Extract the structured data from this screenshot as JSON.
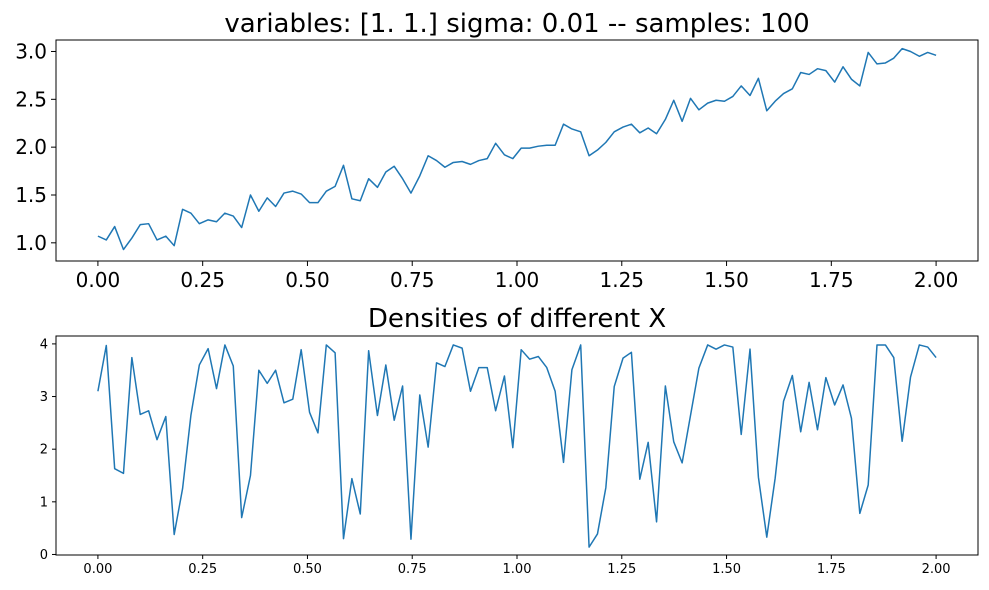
{
  "figure": {
    "background": "#ffffff",
    "line_color": "#1f77b4"
  },
  "chart_data": [
    {
      "type": "line",
      "title": "variables: [1. 1.] sigma: 0.01 -- samples: 100",
      "xlabel": "",
      "ylabel": "",
      "xlim": [
        -0.1,
        2.1
      ],
      "ylim": [
        0.81,
        3.12
      ],
      "xticks": [
        0.0,
        0.25,
        0.5,
        0.75,
        1.0,
        1.25,
        1.5,
        1.75,
        2.0
      ],
      "xtick_labels": [
        "0.00",
        "0.25",
        "0.50",
        "0.75",
        "1.00",
        "1.25",
        "1.50",
        "1.75",
        "2.00"
      ],
      "yticks": [
        1.0,
        1.5,
        2.0,
        2.5,
        3.0
      ],
      "ytick_labels": [
        "1.0",
        "1.5",
        "2.0",
        "2.5",
        "3.0"
      ],
      "grid": false,
      "series": [
        {
          "color": "#1f77b4",
          "x": [
            0.0,
            0.02,
            0.04,
            0.061,
            0.081,
            0.101,
            0.121,
            0.141,
            0.162,
            0.182,
            0.202,
            0.222,
            0.242,
            0.263,
            0.283,
            0.303,
            0.323,
            0.343,
            0.364,
            0.384,
            0.404,
            0.424,
            0.444,
            0.465,
            0.485,
            0.505,
            0.525,
            0.545,
            0.566,
            0.586,
            0.606,
            0.626,
            0.646,
            0.667,
            0.687,
            0.707,
            0.727,
            0.747,
            0.768,
            0.788,
            0.808,
            0.828,
            0.848,
            0.869,
            0.889,
            0.909,
            0.929,
            0.949,
            0.97,
            0.99,
            1.01,
            1.03,
            1.051,
            1.071,
            1.091,
            1.111,
            1.131,
            1.152,
            1.172,
            1.192,
            1.212,
            1.232,
            1.253,
            1.273,
            1.293,
            1.313,
            1.333,
            1.354,
            1.374,
            1.394,
            1.414,
            1.434,
            1.455,
            1.475,
            1.495,
            1.515,
            1.535,
            1.556,
            1.576,
            1.596,
            1.616,
            1.636,
            1.657,
            1.677,
            1.697,
            1.717,
            1.737,
            1.758,
            1.778,
            1.798,
            1.818,
            1.838,
            1.859,
            1.879,
            1.899,
            1.919,
            1.939,
            1.96,
            1.98,
            2.0
          ],
          "y": [
            1.07,
            1.03,
            1.17,
            0.93,
            1.05,
            1.19,
            1.2,
            1.03,
            1.07,
            0.97,
            1.35,
            1.31,
            1.2,
            1.24,
            1.22,
            1.31,
            1.28,
            1.16,
            1.5,
            1.33,
            1.47,
            1.38,
            1.52,
            1.54,
            1.51,
            1.42,
            1.42,
            1.54,
            1.59,
            1.81,
            1.46,
            1.44,
            1.67,
            1.58,
            1.74,
            1.8,
            1.67,
            1.52,
            1.7,
            1.91,
            1.86,
            1.79,
            1.84,
            1.85,
            1.82,
            1.86,
            1.88,
            2.04,
            1.92,
            1.88,
            1.99,
            1.99,
            2.01,
            2.02,
            2.02,
            2.24,
            2.19,
            2.16,
            1.91,
            1.97,
            2.05,
            2.16,
            2.21,
            2.24,
            2.15,
            2.2,
            2.14,
            2.29,
            2.49,
            2.27,
            2.51,
            2.39,
            2.46,
            2.49,
            2.48,
            2.53,
            2.64,
            2.54,
            2.72,
            2.38,
            2.48,
            2.56,
            2.61,
            2.78,
            2.76,
            2.82,
            2.8,
            2.68,
            2.84,
            2.71,
            2.64,
            2.99,
            2.87,
            2.88,
            2.93,
            3.03,
            3.0,
            2.95,
            2.99,
            2.96
          ]
        }
      ]
    },
    {
      "type": "line",
      "title": "Densities of different X",
      "xlabel": "",
      "ylabel": "",
      "xlim": [
        -0.1,
        2.1
      ],
      "ylim": [
        -0.01,
        4.15
      ],
      "xticks": [
        0.0,
        0.25,
        0.5,
        0.75,
        1.0,
        1.25,
        1.5,
        1.75,
        2.0
      ],
      "xtick_labels": [
        "0.00",
        "0.25",
        "0.50",
        "0.75",
        "1.00",
        "1.25",
        "1.50",
        "1.75",
        "2.00"
      ],
      "yticks": [
        0,
        1,
        2,
        3,
        4
      ],
      "ytick_labels": [
        "0",
        "1",
        "2",
        "3",
        "4"
      ],
      "grid": false,
      "series": [
        {
          "color": "#1f77b4",
          "x": [
            0.0,
            0.02,
            0.04,
            0.061,
            0.081,
            0.101,
            0.121,
            0.141,
            0.162,
            0.182,
            0.202,
            0.222,
            0.242,
            0.263,
            0.283,
            0.303,
            0.323,
            0.343,
            0.364,
            0.384,
            0.404,
            0.424,
            0.444,
            0.465,
            0.485,
            0.505,
            0.525,
            0.545,
            0.566,
            0.586,
            0.606,
            0.626,
            0.646,
            0.667,
            0.687,
            0.707,
            0.727,
            0.747,
            0.768,
            0.788,
            0.808,
            0.828,
            0.848,
            0.869,
            0.889,
            0.909,
            0.929,
            0.949,
            0.97,
            0.99,
            1.01,
            1.03,
            1.051,
            1.071,
            1.091,
            1.111,
            1.131,
            1.152,
            1.172,
            1.192,
            1.212,
            1.232,
            1.253,
            1.273,
            1.293,
            1.313,
            1.333,
            1.354,
            1.374,
            1.394,
            1.414,
            1.434,
            1.455,
            1.475,
            1.495,
            1.515,
            1.535,
            1.556,
            1.576,
            1.596,
            1.616,
            1.636,
            1.657,
            1.677,
            1.697,
            1.717,
            1.737,
            1.758,
            1.778,
            1.798,
            1.818,
            1.838,
            1.859,
            1.879,
            1.899,
            1.919,
            1.939,
            1.96,
            1.98,
            2.0
          ],
          "y": [
            3.1,
            3.97,
            1.63,
            1.54,
            3.74,
            2.66,
            2.73,
            2.18,
            2.62,
            0.38,
            1.25,
            2.65,
            3.6,
            3.91,
            3.15,
            3.98,
            3.58,
            0.7,
            1.5,
            3.5,
            3.25,
            3.5,
            2.88,
            2.95,
            3.89,
            2.7,
            2.31,
            3.98,
            3.83,
            0.3,
            1.44,
            0.77,
            3.87,
            2.64,
            3.6,
            2.55,
            3.2,
            0.29,
            3.03,
            2.04,
            3.64,
            3.57,
            3.98,
            3.92,
            3.1,
            3.55,
            3.55,
            2.73,
            3.39,
            2.03,
            3.89,
            3.71,
            3.76,
            3.55,
            3.1,
            1.75,
            3.51,
            3.98,
            0.14,
            0.39,
            1.27,
            3.19,
            3.73,
            3.84,
            1.43,
            2.13,
            0.62,
            3.2,
            2.14,
            1.74,
            2.64,
            3.54,
            3.98,
            3.9,
            3.98,
            3.94,
            2.28,
            3.9,
            1.47,
            0.33,
            1.45,
            2.91,
            3.4,
            2.33,
            3.27,
            2.37,
            3.36,
            2.84,
            3.22,
            2.59,
            0.78,
            1.32,
            3.98,
            3.98,
            3.74,
            2.15,
            3.37,
            3.98,
            3.94,
            3.74
          ]
        }
      ]
    }
  ]
}
